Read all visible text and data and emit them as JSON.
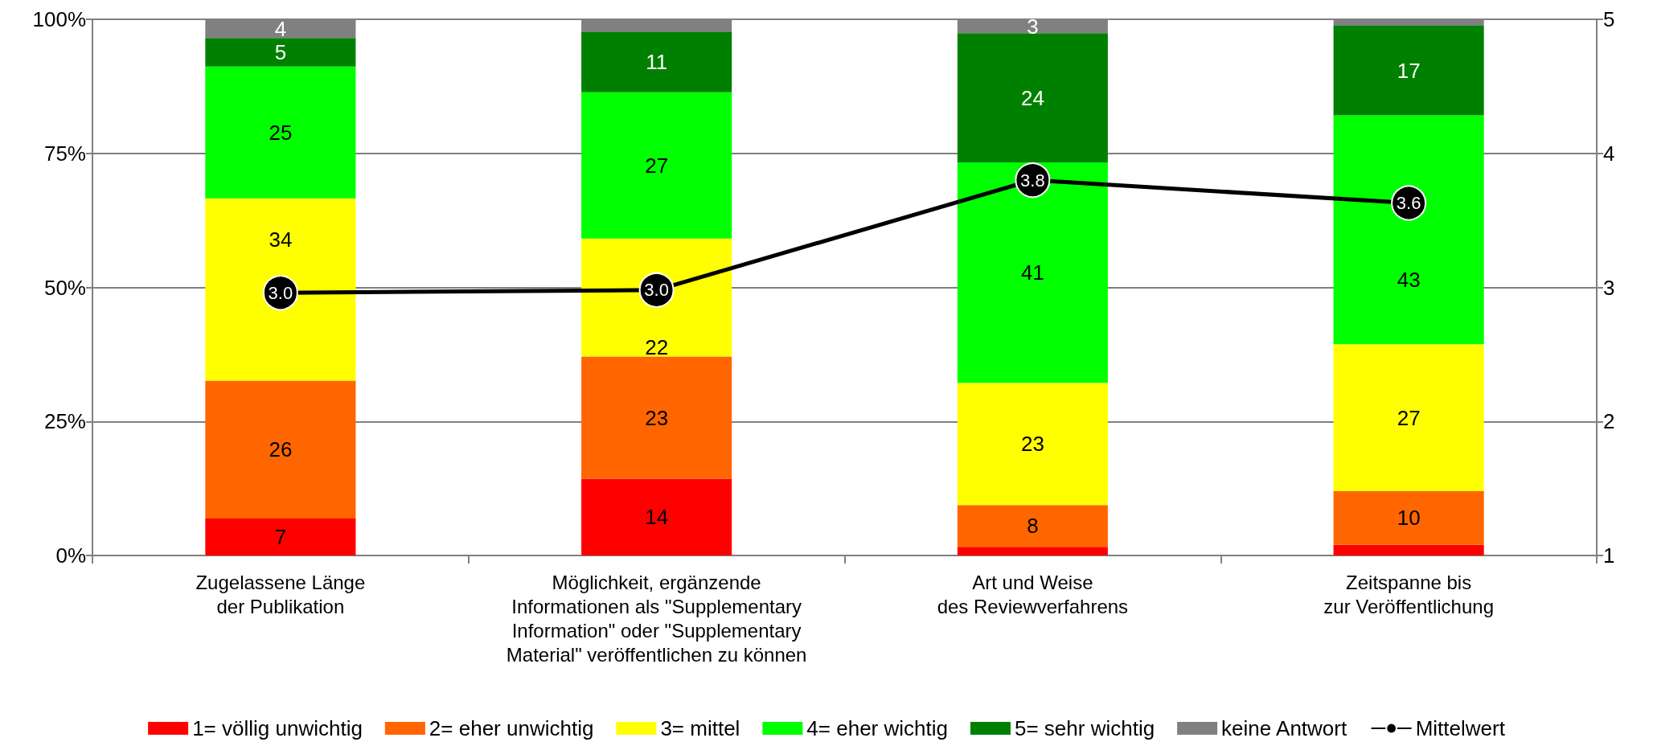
{
  "chart_data": {
    "type": "bar",
    "stacked": true,
    "categories": [
      "Zugelassene Länge\nder Publikation",
      "Möglichkeit, ergänzende\nInformationen als \"Supplementary\nInformation\" oder \"Supplementary\nMaterial\" veröffentlichen zu können",
      "Art und Weise\ndes Reviewverfahrens",
      "Zeitspanne bis\nzur Veröffentlichung"
    ],
    "series": [
      {
        "name": "1= völlig unwichtig",
        "color": "#ff0000",
        "values": [
          6.9,
          14.3,
          1.6,
          2.0
        ],
        "value_labels": [
          "7",
          "14",
          null,
          null
        ]
      },
      {
        "name": "2= eher unwichtig",
        "color": "#ff6600",
        "values": [
          25.7,
          22.8,
          7.8,
          10.0
        ],
        "value_labels": [
          "26",
          "23",
          "8",
          "10"
        ]
      },
      {
        "name": "3= mittel",
        "color": "#ffff00",
        "values": [
          34.0,
          22.0,
          22.8,
          27.4
        ],
        "value_labels": [
          "34",
          "22",
          "23",
          "27"
        ]
      },
      {
        "name": "4= eher wichtig",
        "color": "#00ff00",
        "values": [
          24.6,
          27.3,
          41.1,
          42.7
        ],
        "value_labels": [
          "25",
          "27",
          "41",
          "43"
        ]
      },
      {
        "name": "5= sehr wichtig",
        "color": "#008000",
        "values": [
          5.3,
          11.2,
          24.1,
          16.7
        ],
        "value_labels": [
          "5",
          "11",
          "24",
          "17"
        ]
      },
      {
        "name": "keine Antwort",
        "color": "#808080",
        "values": [
          3.5,
          2.4,
          2.6,
          1.2
        ],
        "value_labels": [
          "4",
          null,
          "3",
          null
        ]
      },
      {
        "name": "Mittelwert",
        "type": "line",
        "axis": "y2",
        "color": "#000000",
        "values": [
          2.96,
          2.98,
          3.8,
          3.63
        ],
        "value_labels": [
          "3.0",
          "3.0",
          "3.8",
          "3.6"
        ]
      }
    ],
    "ylim": [
      0,
      100
    ],
    "yticks": [
      {
        "value": 0,
        "label": "0%"
      },
      {
        "value": 25,
        "label": "25%"
      },
      {
        "value": 50,
        "label": "50%"
      },
      {
        "value": 75,
        "label": "75%"
      },
      {
        "value": 100,
        "label": "100%"
      }
    ],
    "y2lim": [
      1,
      5
    ],
    "y2ticks": [
      1,
      2,
      3,
      4,
      5
    ],
    "grid": "y",
    "legend": "bottom",
    "marker": "circle",
    "line_style": "solid"
  }
}
